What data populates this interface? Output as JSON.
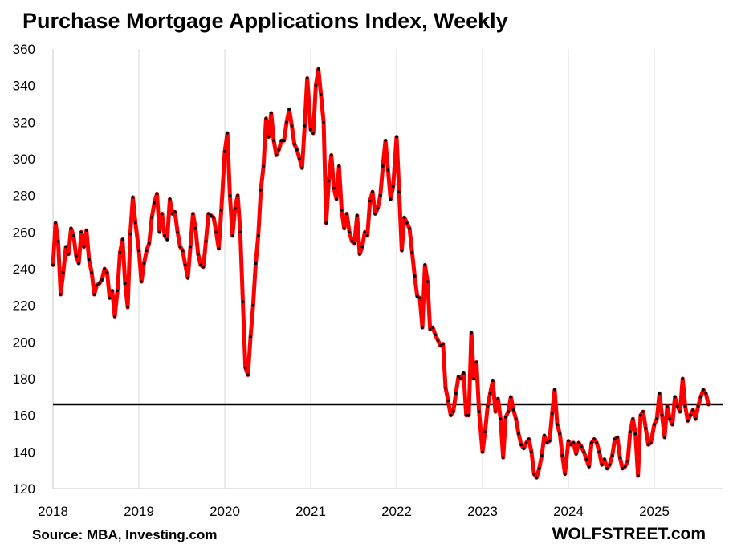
{
  "chart_data": {
    "type": "line",
    "title": "Purchase Mortgage Applications Index, Weekly",
    "source": "Source: MBA, Investing.com",
    "brand": "WOLFSTREET.com",
    "xlabel": "",
    "ylabel": "",
    "ylim": [
      120,
      360
    ],
    "xlim": [
      2018.0,
      2025.83
    ],
    "y_ticks": [
      "120",
      "140",
      "160",
      "180",
      "200",
      "220",
      "240",
      "260",
      "280",
      "300",
      "320",
      "340",
      "360"
    ],
    "x_ticks": [
      "2018",
      "2019",
      "2020",
      "2021",
      "2022",
      "2023",
      "2024",
      "2025"
    ],
    "reference_line": 166,
    "grid": "vertical",
    "line_color": "#ff0000",
    "marker_color": "#000000",
    "series": [
      {
        "points": [
          [
            2018.0,
            242
          ],
          [
            2018.03,
            265
          ],
          [
            2018.06,
            255
          ],
          [
            2018.09,
            226
          ],
          [
            2018.12,
            238
          ],
          [
            2018.15,
            252
          ],
          [
            2018.18,
            248
          ],
          [
            2018.21,
            262
          ],
          [
            2018.24,
            258
          ],
          [
            2018.27,
            247
          ],
          [
            2018.3,
            243
          ],
          [
            2018.33,
            260
          ],
          [
            2018.36,
            252
          ],
          [
            2018.39,
            261
          ],
          [
            2018.42,
            245
          ],
          [
            2018.45,
            238
          ],
          [
            2018.48,
            226
          ],
          [
            2018.51,
            231
          ],
          [
            2018.54,
            232
          ],
          [
            2018.57,
            234
          ],
          [
            2018.6,
            240
          ],
          [
            2018.63,
            238
          ],
          [
            2018.66,
            224
          ],
          [
            2018.69,
            228
          ],
          [
            2018.72,
            214
          ],
          [
            2018.75,
            228
          ],
          [
            2018.78,
            249
          ],
          [
            2018.81,
            256
          ],
          [
            2018.84,
            232
          ],
          [
            2018.87,
            219
          ],
          [
            2018.9,
            259
          ],
          [
            2018.93,
            279
          ],
          [
            2018.96,
            265
          ],
          [
            2019.0,
            250
          ],
          [
            2019.03,
            233
          ],
          [
            2019.06,
            243
          ],
          [
            2019.09,
            250
          ],
          [
            2019.12,
            254
          ],
          [
            2019.15,
            268
          ],
          [
            2019.18,
            276
          ],
          [
            2019.21,
            281
          ],
          [
            2019.24,
            260
          ],
          [
            2019.27,
            270
          ],
          [
            2019.3,
            258
          ],
          [
            2019.33,
            256
          ],
          [
            2019.36,
            278
          ],
          [
            2019.39,
            270
          ],
          [
            2019.42,
            271
          ],
          [
            2019.45,
            260
          ],
          [
            2019.48,
            252
          ],
          [
            2019.51,
            250
          ],
          [
            2019.54,
            242
          ],
          [
            2019.57,
            235
          ],
          [
            2019.6,
            252
          ],
          [
            2019.63,
            270
          ],
          [
            2019.66,
            262
          ],
          [
            2019.69,
            248
          ],
          [
            2019.72,
            242
          ],
          [
            2019.75,
            241
          ],
          [
            2019.78,
            255
          ],
          [
            2019.81,
            270
          ],
          [
            2019.84,
            269
          ],
          [
            2019.87,
            268
          ],
          [
            2019.9,
            260
          ],
          [
            2019.93,
            251
          ],
          [
            2019.96,
            272
          ],
          [
            2020.0,
            304
          ],
          [
            2020.03,
            314
          ],
          [
            2020.06,
            280
          ],
          [
            2020.09,
            258
          ],
          [
            2020.12,
            273
          ],
          [
            2020.15,
            280
          ],
          [
            2020.18,
            260
          ],
          [
            2020.21,
            222
          ],
          [
            2020.24,
            186
          ],
          [
            2020.27,
            182
          ],
          [
            2020.3,
            203
          ],
          [
            2020.33,
            220
          ],
          [
            2020.36,
            243
          ],
          [
            2020.39,
            258
          ],
          [
            2020.42,
            283
          ],
          [
            2020.45,
            296
          ],
          [
            2020.48,
            322
          ],
          [
            2020.51,
            312
          ],
          [
            2020.54,
            325
          ],
          [
            2020.57,
            310
          ],
          [
            2020.6,
            302
          ],
          [
            2020.63,
            305
          ],
          [
            2020.66,
            310
          ],
          [
            2020.69,
            310
          ],
          [
            2020.72,
            320
          ],
          [
            2020.75,
            327
          ],
          [
            2020.78,
            318
          ],
          [
            2020.81,
            308
          ],
          [
            2020.84,
            305
          ],
          [
            2020.87,
            300
          ],
          [
            2020.9,
            295
          ],
          [
            2020.93,
            318
          ],
          [
            2020.96,
            344
          ],
          [
            2021.0,
            316
          ],
          [
            2021.03,
            314
          ],
          [
            2021.06,
            340
          ],
          [
            2021.09,
            349
          ],
          [
            2021.12,
            335
          ],
          [
            2021.15,
            320
          ],
          [
            2021.18,
            265
          ],
          [
            2021.21,
            288
          ],
          [
            2021.24,
            302
          ],
          [
            2021.27,
            284
          ],
          [
            2021.3,
            278
          ],
          [
            2021.33,
            296
          ],
          [
            2021.36,
            272
          ],
          [
            2021.39,
            262
          ],
          [
            2021.42,
            270
          ],
          [
            2021.45,
            260
          ],
          [
            2021.48,
            255
          ],
          [
            2021.51,
            254
          ],
          [
            2021.54,
            269
          ],
          [
            2021.57,
            248
          ],
          [
            2021.6,
            252
          ],
          [
            2021.63,
            260
          ],
          [
            2021.66,
            258
          ],
          [
            2021.69,
            277
          ],
          [
            2021.72,
            282
          ],
          [
            2021.75,
            270
          ],
          [
            2021.78,
            273
          ],
          [
            2021.81,
            280
          ],
          [
            2021.84,
            296
          ],
          [
            2021.87,
            310
          ],
          [
            2021.9,
            294
          ],
          [
            2021.93,
            278
          ],
          [
            2021.96,
            285
          ],
          [
            2022.0,
            312
          ],
          [
            2022.03,
            282
          ],
          [
            2022.06,
            250
          ],
          [
            2022.09,
            268
          ],
          [
            2022.12,
            265
          ],
          [
            2022.15,
            262
          ],
          [
            2022.18,
            249
          ],
          [
            2022.21,
            236
          ],
          [
            2022.24,
            225
          ],
          [
            2022.27,
            224
          ],
          [
            2022.3,
            208
          ],
          [
            2022.33,
            242
          ],
          [
            2022.36,
            233
          ],
          [
            2022.39,
            207
          ],
          [
            2022.42,
            208
          ],
          [
            2022.45,
            204
          ],
          [
            2022.48,
            201
          ],
          [
            2022.51,
            198
          ],
          [
            2022.54,
            199
          ],
          [
            2022.57,
            175
          ],
          [
            2022.6,
            168
          ],
          [
            2022.63,
            160
          ],
          [
            2022.66,
            162
          ],
          [
            2022.69,
            172
          ],
          [
            2022.72,
            181
          ],
          [
            2022.75,
            180
          ],
          [
            2022.78,
            183
          ],
          [
            2022.81,
            160
          ],
          [
            2022.84,
            160
          ],
          [
            2022.87,
            205
          ],
          [
            2022.9,
            180
          ],
          [
            2022.93,
            189
          ],
          [
            2022.96,
            162
          ],
          [
            2023.0,
            140
          ],
          [
            2023.03,
            151
          ],
          [
            2023.06,
            165
          ],
          [
            2023.09,
            172
          ],
          [
            2023.12,
            179
          ],
          [
            2023.15,
            162
          ],
          [
            2023.18,
            169
          ],
          [
            2023.21,
            158
          ],
          [
            2023.24,
            137
          ],
          [
            2023.27,
            159
          ],
          [
            2023.3,
            162
          ],
          [
            2023.33,
            170
          ],
          [
            2023.36,
            163
          ],
          [
            2023.39,
            158
          ],
          [
            2023.42,
            150
          ],
          [
            2023.45,
            144
          ],
          [
            2023.48,
            142
          ],
          [
            2023.51,
            145
          ],
          [
            2023.54,
            147
          ],
          [
            2023.57,
            140
          ],
          [
            2023.6,
            128
          ],
          [
            2023.63,
            126
          ],
          [
            2023.66,
            131
          ],
          [
            2023.69,
            138
          ],
          [
            2023.72,
            149
          ],
          [
            2023.75,
            145
          ],
          [
            2023.78,
            146
          ],
          [
            2023.81,
            161
          ],
          [
            2023.84,
            174
          ],
          [
            2023.87,
            155
          ],
          [
            2023.9,
            150
          ],
          [
            2023.93,
            138
          ],
          [
            2023.96,
            128
          ],
          [
            2024.0,
            146
          ],
          [
            2024.03,
            144
          ],
          [
            2024.06,
            145
          ],
          [
            2024.09,
            139
          ],
          [
            2024.12,
            145
          ],
          [
            2024.15,
            143
          ],
          [
            2024.18,
            140
          ],
          [
            2024.21,
            136
          ],
          [
            2024.24,
            132
          ],
          [
            2024.27,
            145
          ],
          [
            2024.3,
            147
          ],
          [
            2024.33,
            145
          ],
          [
            2024.36,
            140
          ],
          [
            2024.39,
            133
          ],
          [
            2024.42,
            136
          ],
          [
            2024.45,
            131
          ],
          [
            2024.48,
            133
          ],
          [
            2024.51,
            138
          ],
          [
            2024.54,
            147
          ],
          [
            2024.57,
            148
          ],
          [
            2024.6,
            137
          ],
          [
            2024.63,
            131
          ],
          [
            2024.66,
            132
          ],
          [
            2024.69,
            135
          ],
          [
            2024.72,
            151
          ],
          [
            2024.75,
            158
          ],
          [
            2024.78,
            150
          ],
          [
            2024.81,
            127
          ],
          [
            2024.84,
            160
          ],
          [
            2024.87,
            162
          ],
          [
            2024.9,
            153
          ],
          [
            2024.93,
            144
          ],
          [
            2024.96,
            145
          ],
          [
            2025.0,
            155
          ],
          [
            2025.03,
            158
          ],
          [
            2025.06,
            172
          ],
          [
            2025.09,
            160
          ],
          [
            2025.12,
            148
          ],
          [
            2025.15,
            165
          ],
          [
            2025.18,
            158
          ],
          [
            2025.21,
            155
          ],
          [
            2025.24,
            170
          ],
          [
            2025.27,
            165
          ],
          [
            2025.3,
            162
          ],
          [
            2025.33,
            180
          ],
          [
            2025.36,
            165
          ],
          [
            2025.39,
            157
          ],
          [
            2025.42,
            160
          ],
          [
            2025.45,
            163
          ],
          [
            2025.48,
            158
          ],
          [
            2025.51,
            165
          ],
          [
            2025.54,
            170
          ],
          [
            2025.57,
            174
          ],
          [
            2025.6,
            172
          ],
          [
            2025.63,
            166
          ]
        ]
      }
    ]
  }
}
